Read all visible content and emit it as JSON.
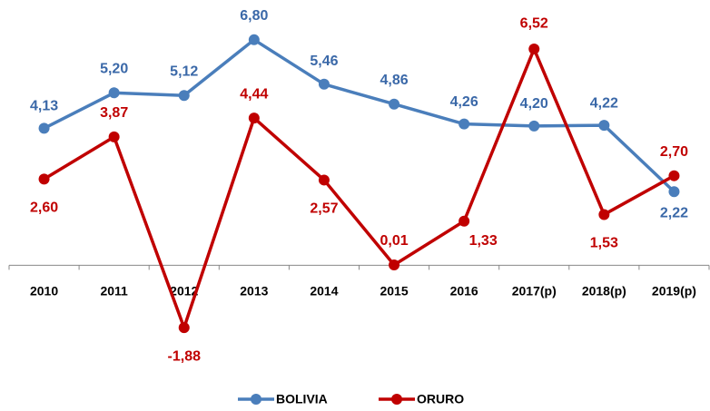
{
  "chart_data": {
    "type": "line",
    "categories": [
      "2010",
      "2011",
      "2012",
      "2013",
      "2014",
      "2015",
      "2016",
      "2017(p)",
      "2018(p)",
      "2019(p)"
    ],
    "series": [
      {
        "name": "BOLIVIA",
        "color": "#4a7ebb",
        "label_color": "#3a68a8",
        "values": [
          4.13,
          5.2,
          5.12,
          6.8,
          5.46,
          4.86,
          4.26,
          4.2,
          4.22,
          2.22
        ],
        "value_labels": [
          "4,13",
          "5,20",
          "5,12",
          "6,80",
          "5,46",
          "4,86",
          "4,26",
          "4,20",
          "4,22",
          "2,22"
        ]
      },
      {
        "name": "ORURO",
        "color": "#c00000",
        "label_color": "#c00000",
        "values": [
          2.6,
          3.87,
          -1.88,
          4.44,
          2.57,
          0.01,
          1.33,
          6.52,
          1.53,
          2.7
        ],
        "value_labels": [
          "2,60",
          "3,87",
          "-1,88",
          "4,44",
          "2,57",
          "0,01",
          "1,33",
          "6,52",
          "1,53",
          "2,70"
        ]
      }
    ],
    "ylim": [
      -2,
      7
    ],
    "legend": "bottom"
  }
}
